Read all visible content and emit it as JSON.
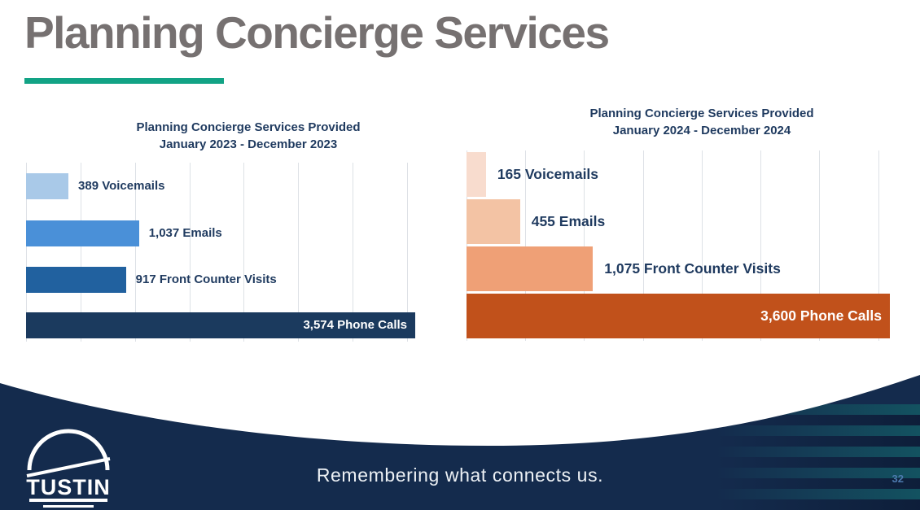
{
  "slide": {
    "title": "Planning Concierge Services",
    "footer": {
      "tagline": "Remembering what connects us.",
      "page_number": "32",
      "logo_text": "TUSTIN"
    },
    "colors": {
      "title_grey": "#767171",
      "accent_teal": "#12A385",
      "heading_navy": "#1F3A5F",
      "footer_navy": "#142B4D",
      "page_number_blue": "#4C79AD",
      "gridline_grey": "#DDE1E6"
    }
  },
  "chart_data": [
    {
      "type": "bar",
      "orientation": "horizontal",
      "title": "Planning Concierge Services Provided",
      "subtitle": "January 2023 - December 2023",
      "categories": [
        "Voicemails",
        "Emails",
        "Front Counter Visits",
        "Phone Calls"
      ],
      "values": [
        389,
        1037,
        917,
        3574
      ],
      "data_labels": [
        "389 Voicemails",
        "1,037 Emails",
        "917 Front Counter Visits",
        "3,574 Phone Calls"
      ],
      "bar_colors": [
        "#A9C9E8",
        "#4A90D8",
        "#21619F",
        "#1B3A5E"
      ],
      "xlim": [
        0,
        3574
      ],
      "gridline_step": 500,
      "grid": true,
      "legend": "none",
      "label_color": "#1F3A5F",
      "inside_label_color": "#FFFFFF"
    },
    {
      "type": "bar",
      "orientation": "horizontal",
      "title": "Planning Concierge Services Provided",
      "subtitle": "January 2024 - December 2024",
      "categories": [
        "Voicemails",
        "Emails",
        "Front Counter Visits",
        "Phone Calls"
      ],
      "values": [
        165,
        455,
        1075,
        3600
      ],
      "data_labels": [
        "165 Voicemails",
        "455 Emails",
        "1,075 Front Counter Visits",
        "3,600 Phone Calls"
      ],
      "bar_colors": [
        "#F8DCCE",
        "#F3C3A4",
        "#EFA076",
        "#C1511B"
      ],
      "xlim": [
        0,
        3600
      ],
      "gridline_step": 500,
      "grid": true,
      "legend": "none",
      "label_color": "#1F3A5F",
      "inside_label_color": "#FFFFFF"
    }
  ]
}
